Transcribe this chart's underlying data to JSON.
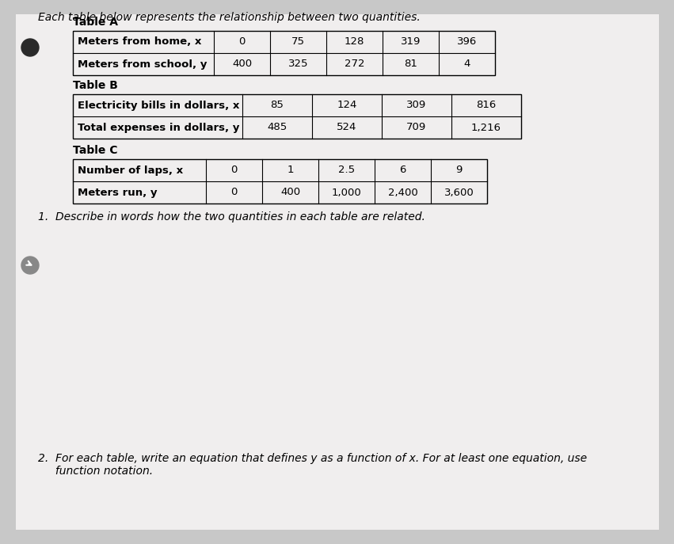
{
  "title_text": "Each table below represents the relationship between two quantities.",
  "bg_color": "#c8c8c8",
  "page_color": "#f0eeee",
  "table_a": {
    "label": "Table A",
    "row1_header": "Meters from home, x",
    "row2_header": "Meters from school, y",
    "row1_values": [
      "0",
      "75",
      "128",
      "319",
      "396"
    ],
    "row2_values": [
      "400",
      "325",
      "272",
      "81",
      "4"
    ]
  },
  "table_b": {
    "label": "Table B",
    "row1_header": "Electricity bills in dollars, x",
    "row2_header": "Total expenses in dollars, y",
    "row1_values": [
      "85",
      "124",
      "309",
      "816"
    ],
    "row2_values": [
      "485",
      "524",
      "709",
      "1,216"
    ]
  },
  "table_c": {
    "label": "Table C",
    "row1_header": "Number of laps, x",
    "row2_header": "Meters run, y",
    "row1_values": [
      "0",
      "1",
      "2.5",
      "6",
      "9"
    ],
    "row2_values": [
      "0",
      "400",
      "1,000",
      "2,400",
      "3,600"
    ]
  },
  "question1": "1.  Describe in words how the two quantities in each table are related.",
  "question2_line1": "2.  For each table, write an equation that defines y as a function of x. For at least one equation, use",
  "question2_line2": "     function notation."
}
